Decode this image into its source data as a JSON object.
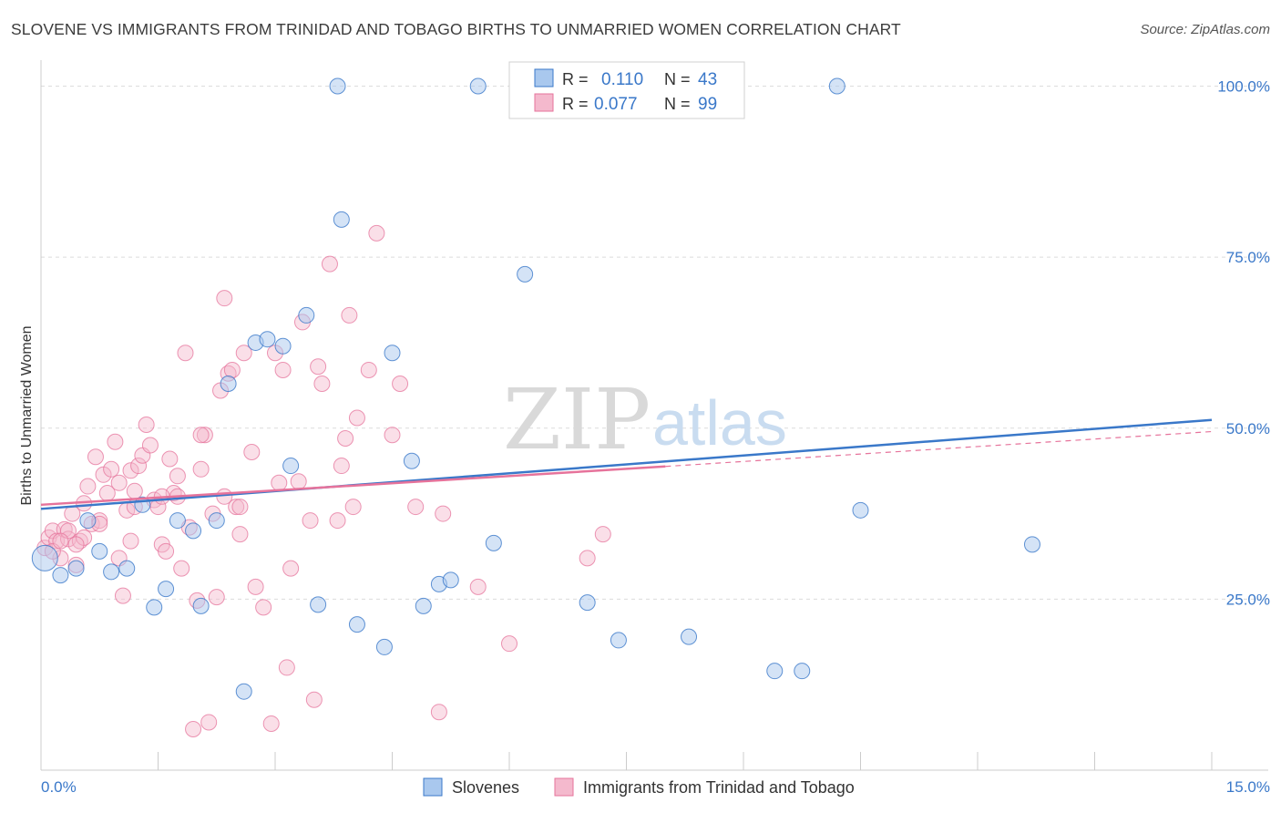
{
  "title": "SLOVENE VS IMMIGRANTS FROM TRINIDAD AND TOBAGO BIRTHS TO UNMARRIED WOMEN CORRELATION CHART",
  "source": "Source: ZipAtlas.com",
  "watermark": {
    "zip": "ZIP",
    "atlas": "atlas"
  },
  "colors": {
    "blue": "#3a78c9",
    "blue_fill": "#a9c8ee",
    "pink": "#e6739b",
    "pink_fill": "#f4b9cd",
    "grid": "#dcdcdc"
  },
  "legend_top": [
    {
      "r_label": "R =",
      "r_value": "0.110",
      "n_label": "N =",
      "n_value": "43"
    },
    {
      "r_label": "R =",
      "r_value": "0.077",
      "n_label": "N =",
      "n_value": "99"
    }
  ],
  "chart_data": {
    "type": "scatter",
    "title": "SLOVENE VS IMMIGRANTS FROM TRINIDAD AND TOBAGO BIRTHS TO UNMARRIED WOMEN CORRELATION CHART",
    "xlabel": "",
    "ylabel": "Births to Unmarried Women",
    "xlim": [
      0,
      15
    ],
    "ylim": [
      0,
      103
    ],
    "x_tick_labels": [
      "0.0%",
      "15.0%"
    ],
    "y_ticks": [
      25,
      50,
      75,
      100
    ],
    "y_tick_labels": [
      "25.0%",
      "50.0%",
      "75.0%",
      "100.0%"
    ],
    "grid": true,
    "legend_position": "bottom",
    "series": [
      {
        "name": "Slovenes",
        "color": "#3a78c9",
        "trend": {
          "x": [
            0,
            15
          ],
          "y": [
            38.2,
            51.2
          ],
          "style": "solid"
        },
        "points": [
          [
            0.05,
            31.0
          ],
          [
            0.25,
            28.5
          ],
          [
            0.45,
            29.5
          ],
          [
            0.6,
            36.5
          ],
          [
            0.75,
            32.0
          ],
          [
            0.9,
            29.0
          ],
          [
            1.1,
            29.5
          ],
          [
            1.3,
            38.8
          ],
          [
            1.45,
            23.8
          ],
          [
            1.6,
            26.5
          ],
          [
            1.75,
            36.5
          ],
          [
            1.95,
            35.0
          ],
          [
            2.05,
            24.0
          ],
          [
            2.25,
            36.5
          ],
          [
            2.4,
            56.5
          ],
          [
            2.6,
            11.5
          ],
          [
            2.75,
            62.5
          ],
          [
            2.9,
            63.0
          ],
          [
            3.1,
            62.0
          ],
          [
            3.2,
            44.5
          ],
          [
            3.4,
            66.5
          ],
          [
            3.55,
            24.2
          ],
          [
            3.8,
            100.0
          ],
          [
            3.85,
            80.5
          ],
          [
            4.05,
            21.3
          ],
          [
            4.4,
            18.0
          ],
          [
            4.5,
            61.0
          ],
          [
            4.75,
            45.2
          ],
          [
            4.9,
            24.0
          ],
          [
            5.1,
            27.2
          ],
          [
            5.25,
            27.8
          ],
          [
            5.6,
            100.0
          ],
          [
            5.8,
            33.2
          ],
          [
            6.2,
            72.5
          ],
          [
            6.3,
            100.0
          ],
          [
            7.0,
            24.5
          ],
          [
            7.4,
            19.0
          ],
          [
            8.3,
            19.5
          ],
          [
            9.4,
            14.5
          ],
          [
            9.75,
            14.5
          ],
          [
            10.2,
            100.0
          ],
          [
            10.5,
            38.0
          ],
          [
            12.7,
            33.0
          ]
        ]
      },
      {
        "name": "Immigrants from Trinidad and Tobago",
        "color": "#e6739b",
        "trend": {
          "x": [
            0,
            8.0
          ],
          "y": [
            38.8,
            44.4
          ],
          "style": "solid",
          "dashed_extension_x": [
            8.0,
            15
          ],
          "dashed_extension_y": [
            44.4,
            49.5
          ]
        },
        "points": [
          [
            0.05,
            32.5
          ],
          [
            0.1,
            34.0
          ],
          [
            0.15,
            35.0
          ],
          [
            0.2,
            33.5
          ],
          [
            0.25,
            31.0
          ],
          [
            0.3,
            35.2
          ],
          [
            0.35,
            33.8
          ],
          [
            0.4,
            37.5
          ],
          [
            0.45,
            30.0
          ],
          [
            0.5,
            33.5
          ],
          [
            0.55,
            39.0
          ],
          [
            0.6,
            41.5
          ],
          [
            0.65,
            36.0
          ],
          [
            0.7,
            45.8
          ],
          [
            0.75,
            36.5
          ],
          [
            0.8,
            43.2
          ],
          [
            0.85,
            40.5
          ],
          [
            0.9,
            44.0
          ],
          [
            0.95,
            48.0
          ],
          [
            1.0,
            31.0
          ],
          [
            1.05,
            25.5
          ],
          [
            1.1,
            38.0
          ],
          [
            1.15,
            43.8
          ],
          [
            1.2,
            40.8
          ],
          [
            1.25,
            44.5
          ],
          [
            1.3,
            46.0
          ],
          [
            1.35,
            50.5
          ],
          [
            1.4,
            47.5
          ],
          [
            1.45,
            39.5
          ],
          [
            1.5,
            38.5
          ],
          [
            1.55,
            33.0
          ],
          [
            1.6,
            32.0
          ],
          [
            1.65,
            45.5
          ],
          [
            1.7,
            40.5
          ],
          [
            1.75,
            43.0
          ],
          [
            1.8,
            29.5
          ],
          [
            1.85,
            61.0
          ],
          [
            1.9,
            35.5
          ],
          [
            1.95,
            6.0
          ],
          [
            2.0,
            24.8
          ],
          [
            2.05,
            44.0
          ],
          [
            2.1,
            49.0
          ],
          [
            2.15,
            7.0
          ],
          [
            2.2,
            37.5
          ],
          [
            2.25,
            25.3
          ],
          [
            2.3,
            55.5
          ],
          [
            2.35,
            69.0
          ],
          [
            2.4,
            58.0
          ],
          [
            2.45,
            58.5
          ],
          [
            2.5,
            38.5
          ],
          [
            2.55,
            34.5
          ],
          [
            2.6,
            61.0
          ],
          [
            2.7,
            46.5
          ],
          [
            2.75,
            26.8
          ],
          [
            2.85,
            23.8
          ],
          [
            2.95,
            6.8
          ],
          [
            3.0,
            61.0
          ],
          [
            3.05,
            42.0
          ],
          [
            3.1,
            58.5
          ],
          [
            3.15,
            15.0
          ],
          [
            3.2,
            29.5
          ],
          [
            3.3,
            42.2
          ],
          [
            3.35,
            65.5
          ],
          [
            3.45,
            36.5
          ],
          [
            3.5,
            10.3
          ],
          [
            3.55,
            59.0
          ],
          [
            3.6,
            56.5
          ],
          [
            3.7,
            74.0
          ],
          [
            3.8,
            36.5
          ],
          [
            3.85,
            44.5
          ],
          [
            3.9,
            48.5
          ],
          [
            3.95,
            66.5
          ],
          [
            4.0,
            38.5
          ],
          [
            4.05,
            51.5
          ],
          [
            4.2,
            58.5
          ],
          [
            4.3,
            78.5
          ],
          [
            4.5,
            49.0
          ],
          [
            4.6,
            56.5
          ],
          [
            4.8,
            38.5
          ],
          [
            5.1,
            8.5
          ],
          [
            5.15,
            37.5
          ],
          [
            5.6,
            26.8
          ],
          [
            6.0,
            18.5
          ],
          [
            7.0,
            31.0
          ],
          [
            7.2,
            34.5
          ],
          [
            0.15,
            32.0
          ],
          [
            0.35,
            35.0
          ],
          [
            0.55,
            34.0
          ],
          [
            0.75,
            36.0
          ],
          [
            1.0,
            42.0
          ],
          [
            1.2,
            38.5
          ],
          [
            1.55,
            40.0
          ],
          [
            1.75,
            40.0
          ],
          [
            2.05,
            49.0
          ],
          [
            2.35,
            40.0
          ],
          [
            2.55,
            38.5
          ],
          [
            0.25,
            33.5
          ],
          [
            0.45,
            33.0
          ],
          [
            1.15,
            33.5
          ]
        ]
      }
    ]
  }
}
